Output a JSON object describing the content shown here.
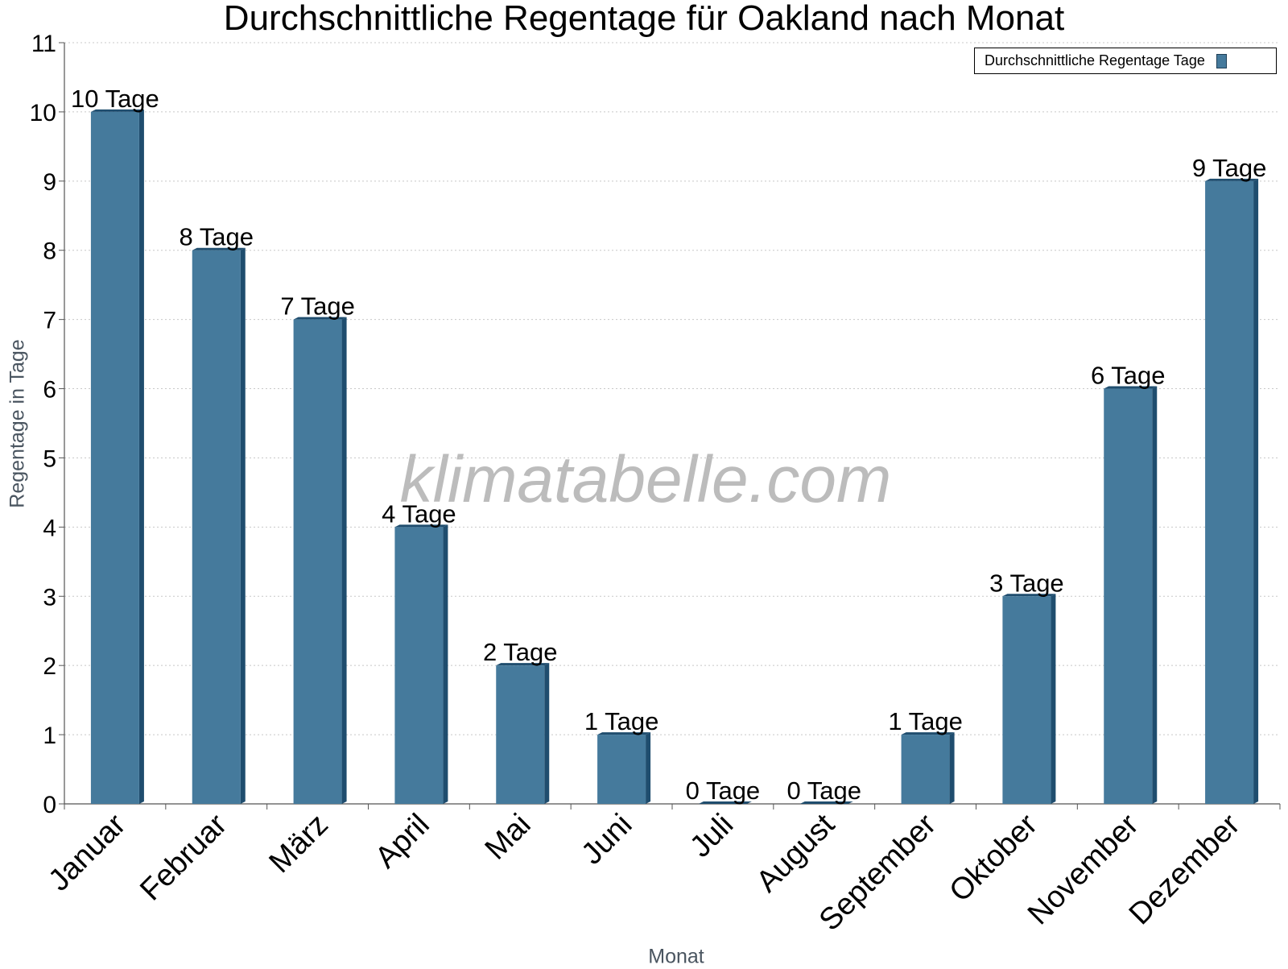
{
  "chart_data": {
    "type": "bar",
    "title": "Durchschnittliche Regentage für Oakland nach Monat",
    "xlabel": "Monat",
    "ylabel": "Regentage in Tage",
    "categories": [
      "Januar",
      "Februar",
      "März",
      "April",
      "Mai",
      "Juni",
      "Juli",
      "August",
      "September",
      "Oktober",
      "November",
      "Dezember"
    ],
    "series": [
      {
        "name": "Durchschnittliche Regentage Tage",
        "values": [
          10,
          8,
          7,
          4,
          2,
          1,
          0,
          0,
          1,
          3,
          6,
          9
        ],
        "labels": [
          "10 Tage",
          "8 Tage",
          "7 Tage",
          "4 Tage",
          "2 Tage",
          "1 Tage",
          "0 Tage",
          "0 Tage",
          "1 Tage",
          "3 Tage",
          "6 Tage",
          "9 Tage"
        ]
      }
    ],
    "ylim": [
      0,
      11
    ],
    "yticks": [
      "0",
      "1",
      "2",
      "3",
      "4",
      "5",
      "6",
      "7",
      "8",
      "9",
      "10",
      "11"
    ],
    "grid": true,
    "legend": "top-right",
    "colors": {
      "bar": "#457a9c",
      "bar_side": "#1f4d6e",
      "grid": "#c8c8c8"
    }
  },
  "watermark": "klimatabelle.com"
}
